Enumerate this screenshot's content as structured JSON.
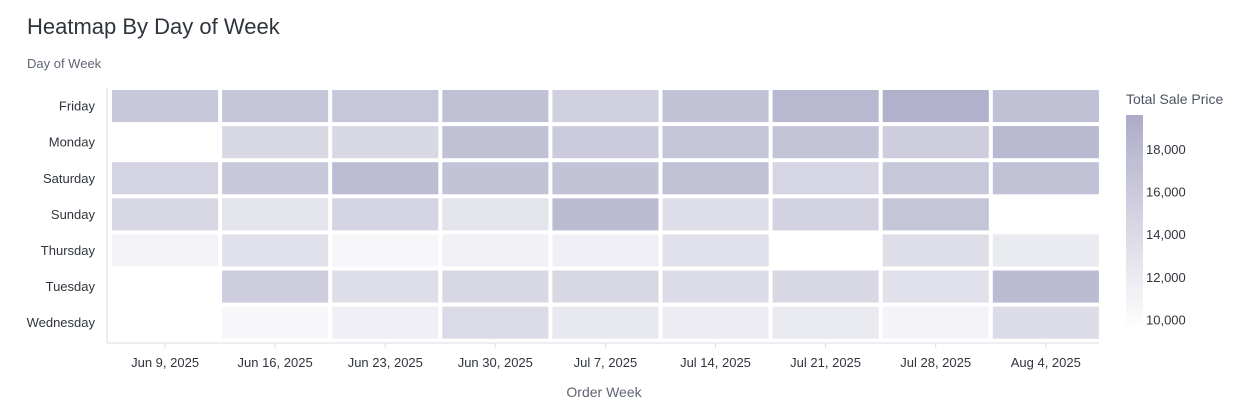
{
  "header": {
    "title": "Heatmap By Day of Week",
    "y_axis_title": "Day of Week"
  },
  "colors": {
    "low": "#ffffff",
    "high": "#acacc8",
    "gap": "#ffffff",
    "axis": "#dadde3"
  },
  "chart_data": {
    "type": "heatmap",
    "title": "Heatmap By Day of Week",
    "xlabel": "Order Week",
    "ylabel": "Day of Week",
    "x": [
      "Jun 9, 2025",
      "Jun 16, 2025",
      "Jun 23, 2025",
      "Jun 30, 2025",
      "Jul 7, 2025",
      "Jul 14, 2025",
      "Jul 21, 2025",
      "Jul 28, 2025",
      "Aug 4, 2025"
    ],
    "y": [
      "Friday",
      "Monday",
      "Saturday",
      "Sunday",
      "Thursday",
      "Tuesday",
      "Wednesday"
    ],
    "values": [
      [
        16200,
        16400,
        16300,
        17100,
        15200,
        16800,
        18200,
        19000,
        17000
      ],
      [
        null,
        14200,
        14300,
        17100,
        15800,
        16600,
        16700,
        15600,
        18100
      ],
      [
        14900,
        16200,
        17600,
        16800,
        16800,
        16900,
        14600,
        16300,
        16900
      ],
      [
        14200,
        12800,
        14700,
        12800,
        17800,
        13500,
        15000,
        16600,
        null
      ],
      [
        10900,
        13200,
        10600,
        11200,
        11400,
        13300,
        null,
        13500,
        12000
      ],
      [
        null,
        15600,
        13500,
        14300,
        14300,
        13700,
        14200,
        13200,
        17800
      ],
      [
        null,
        10500,
        11400,
        13900,
        12300,
        11800,
        12200,
        10800,
        13700
      ]
    ],
    "colorbar": {
      "title": "Total Sale Price",
      "range": [
        9500,
        19600
      ],
      "ticks": [
        10000,
        12000,
        14000,
        16000,
        18000
      ],
      "tick_labels": [
        "10,000",
        "12,000",
        "14,000",
        "16,000",
        "18,000"
      ]
    },
    "grid": false
  }
}
